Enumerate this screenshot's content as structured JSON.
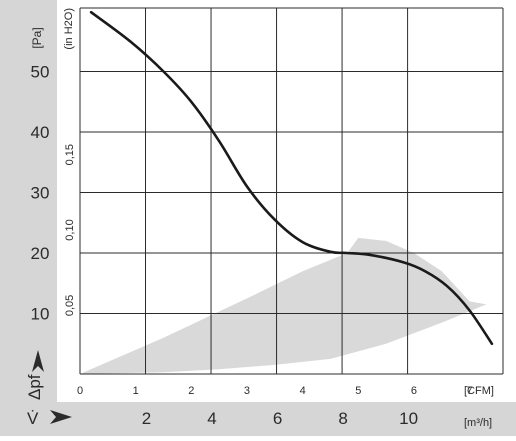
{
  "chart_data": {
    "type": "line",
    "y_unit": "[Pa]",
    "y_unit_secondary": "(in H2O)",
    "y_label": "Δpf",
    "x_unit_cfm": "[CFM]",
    "x_label": "V̇",
    "x_unit_m3h": "[m³/h]",
    "y_ticks_pa": [
      "10",
      "20",
      "30",
      "40",
      "50"
    ],
    "y_ticks_inh2o": [
      "0,05",
      "0,10",
      "0,15"
    ],
    "x_ticks_cfm": [
      "0",
      "1",
      "2",
      "3",
      "4",
      "5",
      "6",
      "7"
    ],
    "x_ticks_m3h": [
      "2",
      "4",
      "6",
      "8",
      "10"
    ],
    "x_label_m3h": "CFM",
    "xlim_cfm": [
      0,
      7.6
    ],
    "ylim_pa": [
      0,
      60.5
    ],
    "colors": {
      "axis_band": "#d6d6d6",
      "curve": "#1a1a1a",
      "operating_region": "#d9d9d9",
      "grid": "#2b2b2b"
    },
    "series": [
      {
        "x": [
          0.2,
          0.9,
          1.5,
          2.0,
          2.5,
          3.0,
          3.5,
          4.0,
          4.5,
          4.8,
          5.2,
          5.8,
          6.2,
          6.6,
          7.0,
          7.4
        ],
        "y": [
          59.8,
          55.0,
          50.0,
          45.0,
          38.5,
          31.0,
          25.5,
          21.8,
          20.2,
          20.0,
          19.7,
          18.5,
          17.0,
          14.5,
          10.5,
          5.0
        ],
        "color": "#1a1a1a"
      }
    ],
    "shaded_region": {
      "upper_x": [
        0.0,
        1.5,
        3.0,
        4.0,
        4.8,
        5.0,
        5.5,
        6.0,
        6.5,
        7.0,
        7.3
      ],
      "upper_y": [
        0.0,
        6.0,
        12.5,
        17.0,
        20.0,
        22.5,
        22.0,
        20.0,
        17.0,
        12.0,
        11.5
      ],
      "lower_x": [
        7.3,
        6.5,
        5.5,
        4.5,
        3.5,
        2.5,
        1.5,
        0.0
      ],
      "lower_y": [
        11.5,
        8.5,
        5.0,
        2.5,
        1.5,
        0.8,
        0.3,
        0.0
      ]
    }
  }
}
